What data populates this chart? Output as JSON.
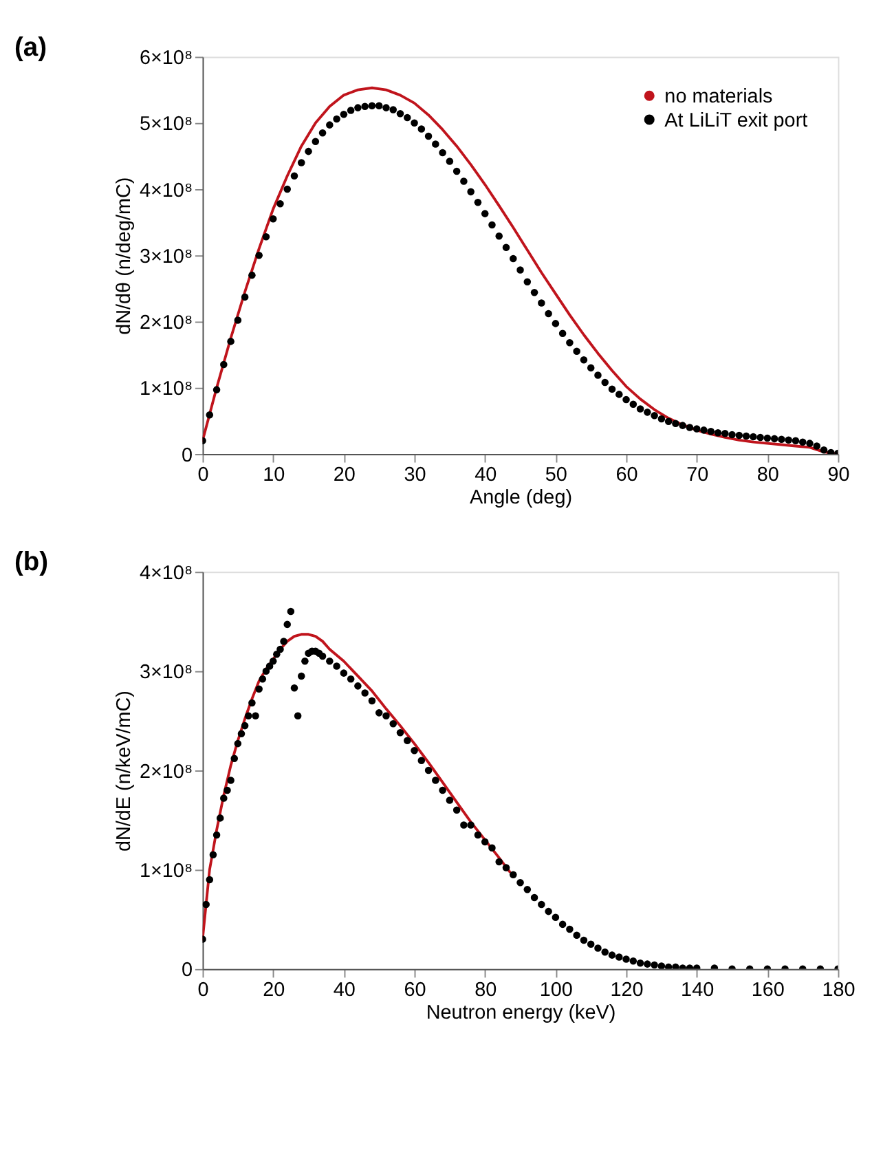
{
  "chart_data": [
    {
      "type": "line",
      "title": "(a)",
      "xlabel": "Angle (deg)",
      "ylabel": "dN/dθ (n/deg/mC)",
      "xlim": [
        0,
        90
      ],
      "xticks": [
        0,
        10,
        20,
        30,
        40,
        50,
        60,
        70,
        80,
        90
      ],
      "ylim": [
        0,
        600000000
      ],
      "yticks": [
        {
          "value": 0,
          "label": "0"
        },
        {
          "value": 100000000,
          "label": "1×10⁸"
        },
        {
          "value": 200000000,
          "label": "2×10⁸"
        },
        {
          "value": 300000000,
          "label": "3×10⁸"
        },
        {
          "value": 400000000,
          "label": "4×10⁸"
        },
        {
          "value": 500000000,
          "label": "5×10⁸"
        },
        {
          "value": 600000000,
          "label": "6×10⁸"
        }
      ],
      "grid": false,
      "legend": "top right",
      "series": [
        {
          "name": "no materials",
          "type": "line",
          "color": "#c0141c",
          "line_style": "solid",
          "x": [
            0,
            2,
            4,
            6,
            8,
            10,
            12,
            14,
            16,
            18,
            20,
            22,
            24,
            26,
            28,
            30,
            32,
            34,
            36,
            38,
            40,
            42,
            44,
            46,
            48,
            50,
            52,
            54,
            56,
            58,
            60,
            62,
            64,
            66,
            68,
            70,
            72,
            74,
            76,
            78,
            80,
            82,
            84,
            86,
            88,
            90
          ],
          "values": [
            20000000.0,
            100000000.0,
            175000000.0,
            245000000.0,
            310000000.0,
            370000000.0,
            420000000.0,
            465000000.0,
            500000000.0,
            525000000.0,
            542000000.0,
            550000000.0,
            553000000.0,
            550000000.0,
            542000000.0,
            530000000.0,
            512000000.0,
            490000000.0,
            465000000.0,
            437000000.0,
            407000000.0,
            375000000.0,
            342000000.0,
            308000000.0,
            274000000.0,
            242000000.0,
            210000000.0,
            180000000.0,
            152000000.0,
            126000000.0,
            102000000.0,
            83000000.0,
            67000000.0,
            54000000.0,
            44000000.0,
            36000000.0,
            30000000.0,
            25000000.0,
            21000000.0,
            18000000.0,
            16000000.0,
            14000000.0,
            12000000.0,
            10000000.0,
            3000000.0,
            0.0
          ]
        },
        {
          "name": "At LiLiT exit port",
          "type": "scatter",
          "color": "#000000",
          "marker": "circle",
          "x": [
            0,
            1,
            2,
            3,
            4,
            5,
            6,
            7,
            8,
            9,
            10,
            11,
            12,
            13,
            14,
            15,
            16,
            17,
            18,
            19,
            20,
            21,
            22,
            23,
            24,
            25,
            26,
            27,
            28,
            29,
            30,
            31,
            32,
            33,
            34,
            35,
            36,
            37,
            38,
            39,
            40,
            41,
            42,
            43,
            44,
            45,
            46,
            47,
            48,
            49,
            50,
            51,
            52,
            53,
            54,
            55,
            56,
            57,
            58,
            59,
            60,
            61,
            62,
            63,
            64,
            65,
            66,
            67,
            68,
            69,
            70,
            71,
            72,
            73,
            74,
            75,
            76,
            77,
            78,
            79,
            80,
            81,
            82,
            83,
            84,
            85,
            86,
            87,
            88,
            89,
            90
          ],
          "values": [
            20000000.0,
            59000000.0,
            97000000.0,
            135000000.0,
            170000000.0,
            202000000.0,
            237000000.0,
            270000000.0,
            300000000.0,
            328000000.0,
            355000000.0,
            378000000.0,
            400000000.0,
            420000000.0,
            440000000.0,
            457000000.0,
            472000000.0,
            485000000.0,
            497000000.0,
            506000000.0,
            513000000.0,
            519000000.0,
            523000000.0,
            525000000.0,
            526000000.0,
            526000000.0,
            523000000.0,
            520000000.0,
            514000000.0,
            508000000.0,
            500000000.0,
            491000000.0,
            480000000.0,
            468000000.0,
            455000000.0,
            442000000.0,
            427000000.0,
            412000000.0,
            396000000.0,
            380000000.0,
            363000000.0,
            346000000.0,
            329000000.0,
            312000000.0,
            295000000.0,
            278000000.0,
            260000000.0,
            244000000.0,
            228000000.0,
            212000000.0,
            197000000.0,
            182000000.0,
            168000000.0,
            155000000.0,
            142000000.0,
            130000000.0,
            119000000.0,
            108000000.0,
            98000000.0,
            90000000.0,
            82000000.0,
            75000000.0,
            68000000.0,
            63000000.0,
            58000000.0,
            53000000.0,
            49000000.0,
            46000000.0,
            43000000.0,
            40000000.0,
            38000000.0,
            36000000.0,
            34000000.0,
            32000000.0,
            31000000.0,
            29000000.0,
            28000000.0,
            27000000.0,
            26000000.0,
            25000000.0,
            24000000.0,
            23000000.0,
            22000000.0,
            21000000.0,
            20000000.0,
            18000000.0,
            16000000.0,
            12000000.0,
            6000000.0,
            2000000.0,
            1000000.0
          ]
        }
      ]
    },
    {
      "type": "line",
      "title": "(b)",
      "xlabel": "Neutron energy (keV)",
      "ylabel": "dN/dE (n/keV/mC)",
      "xlim": [
        0,
        180
      ],
      "xticks": [
        0,
        20,
        40,
        60,
        80,
        100,
        120,
        140,
        160,
        180
      ],
      "ylim": [
        0,
        400000000
      ],
      "yticks": [
        {
          "value": 0,
          "label": "0"
        },
        {
          "value": 100000000,
          "label": "1×10⁸"
        },
        {
          "value": 200000000,
          "label": "2×10⁸"
        },
        {
          "value": 300000000,
          "label": "3×10⁸"
        },
        {
          "value": 400000000,
          "label": "4×10⁸"
        }
      ],
      "grid": false,
      "legend": "top right",
      "series": [
        {
          "name": "no materials",
          "type": "line",
          "color": "#c0141c",
          "line_style": "solid",
          "x": [
            0,
            1,
            2,
            4,
            6,
            8,
            10,
            12,
            14,
            16,
            18,
            20,
            22,
            24,
            26,
            28,
            30,
            32,
            34,
            36,
            40,
            44,
            48,
            52,
            56,
            60,
            64,
            68,
            72,
            76,
            80,
            84,
            87
          ],
          "values": [
            30000000.0,
            65000000.0,
            100000000.0,
            140000000.0,
            175000000.0,
            205000000.0,
            230000000.0,
            252000000.0,
            272000000.0,
            290000000.0,
            302000000.0,
            312000000.0,
            322000000.0,
            330000000.0,
            335000000.0,
            337000000.0,
            337000000.0,
            335000000.0,
            330000000.0,
            322000000.0,
            310000000.0,
            295000000.0,
            280000000.0,
            262000000.0,
            245000000.0,
            227000000.0,
            208000000.0,
            188000000.0,
            168000000.0,
            148000000.0,
            130000000.0,
            112000000.0,
            98000000.0
          ]
        },
        {
          "name": "At LiLiT exit port",
          "type": "scatter",
          "color": "#000000",
          "marker": "circle",
          "x": [
            0,
            1,
            2,
            3,
            4,
            5,
            6,
            7,
            8,
            9,
            10,
            11,
            12,
            13,
            14,
            15,
            16,
            17,
            18,
            19,
            20,
            21,
            22,
            23,
            24,
            25,
            26,
            27,
            28,
            29,
            30,
            31,
            32,
            33,
            34,
            36,
            38,
            40,
            42,
            44,
            46,
            48,
            50,
            52,
            54,
            56,
            58,
            60,
            62,
            64,
            66,
            68,
            70,
            72,
            74,
            76,
            78,
            80,
            82,
            84,
            86,
            88,
            90,
            92,
            94,
            96,
            98,
            100,
            102,
            104,
            106,
            108,
            110,
            112,
            114,
            116,
            118,
            120,
            122,
            124,
            126,
            128,
            130,
            132,
            134,
            136,
            138,
            140,
            145,
            150,
            155,
            160,
            165,
            170,
            175,
            180
          ],
          "values": [
            30000000.0,
            65000000.0,
            90000000.0,
            115000000.0,
            135000000.0,
            152000000.0,
            172000000.0,
            180000000.0,
            190000000.0,
            212000000.0,
            227000000.0,
            237000000.0,
            245000000.0,
            255000000.0,
            268000000.0,
            255000000.0,
            282000000.0,
            292000000.0,
            300000000.0,
            305000000.0,
            310000000.0,
            317000000.0,
            322000000.0,
            330000000.0,
            347000000.0,
            360000000.0,
            283000000.0,
            255000000.0,
            295000000.0,
            310000000.0,
            318000000.0,
            320000000.0,
            320000000.0,
            318000000.0,
            315000000.0,
            310000000.0,
            305000000.0,
            298000000.0,
            292000000.0,
            285000000.0,
            278000000.0,
            270000000.0,
            258000000.0,
            255000000.0,
            247000000.0,
            238000000.0,
            230000000.0,
            220000000.0,
            210000000.0,
            200000000.0,
            190000000.0,
            180000000.0,
            170000000.0,
            160000000.0,
            145000000.0,
            145000000.0,
            135000000.0,
            128000000.0,
            122000000.0,
            108000000.0,
            102000000.0,
            95000000.0,
            87000000.0,
            80000000.0,
            72000000.0,
            65000000.0,
            58000000.0,
            52000000.0,
            45000000.0,
            40000000.0,
            34000000.0,
            29000000.0,
            25000000.0,
            21000000.0,
            17000000.0,
            14000000.0,
            12000000.0,
            10000000.0,
            8000000.0,
            6000000.0,
            5000000.0,
            4000000.0,
            3000000.0,
            2000000.0,
            2000000.0,
            1000000.0,
            1000000.0,
            1000000.0,
            1000000.0,
            0.0,
            0.0,
            0.0,
            0.0,
            0.0,
            0.0,
            0.0
          ]
        }
      ]
    }
  ]
}
